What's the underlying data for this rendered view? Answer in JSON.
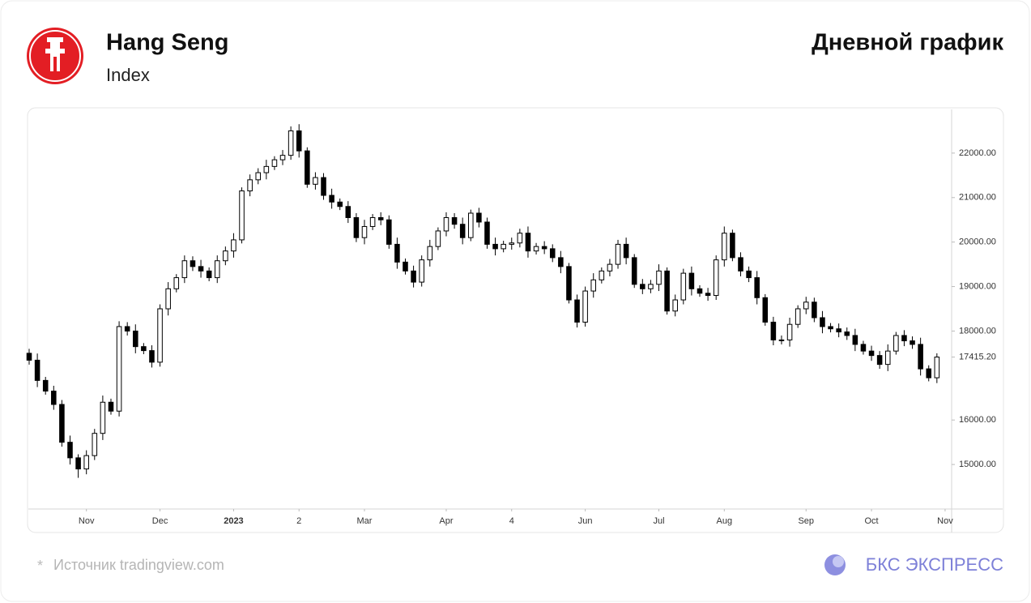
{
  "header": {
    "title": "Hang Seng",
    "subtitle": "Index",
    "chart_label": "Дневной график"
  },
  "chart_data": {
    "type": "candlestick",
    "open": [
      17500,
      17345,
      16890,
      16650,
      16350,
      15500,
      15150,
      14900,
      15200,
      15700,
      16400,
      16200,
      18100,
      18000,
      17650,
      17560,
      17300,
      18500,
      18950,
      19200,
      19580,
      19450,
      19350,
      19200,
      19580,
      19800,
      20050,
      21150,
      21400,
      21560,
      21700,
      21850,
      21950,
      22500,
      22050,
      21300,
      21450,
      21050,
      20900,
      20800,
      20550,
      20100,
      20350,
      20550,
      20500,
      19950,
      19550,
      19350,
      19100,
      19600,
      19900,
      20250,
      20550,
      20400,
      20100,
      20650,
      20450,
      19950,
      19850,
      19950,
      19980,
      20200,
      19800,
      19900,
      19850,
      19650,
      19450,
      18700,
      18200,
      18900,
      19150,
      19350,
      19500,
      19950,
      19650,
      19050,
      18950,
      19050,
      19350,
      18450,
      18700,
      19300,
      18950,
      18850,
      18800,
      19600,
      20200,
      19650,
      19350,
      19200,
      18750,
      18200,
      17800,
      17800,
      18150,
      18500,
      18650,
      18300,
      18100,
      18050,
      17980,
      17900,
      17700,
      17550,
      17450,
      17250,
      17550,
      17900,
      17780,
      17700,
      17150,
      16950
    ],
    "high": [
      17600,
      17495,
      16970,
      16770,
      16450,
      15650,
      15230,
      15320,
      15800,
      16550,
      16480,
      18220,
      18200,
      18150,
      17730,
      17680,
      18600,
      19100,
      19280,
      19700,
      19680,
      19600,
      19430,
      19700,
      19900,
      20200,
      21230,
      21520,
      21660,
      21850,
      21930,
      22070,
      22600,
      22650,
      22130,
      21570,
      21550,
      21200,
      20980,
      20920,
      20650,
      20500,
      20630,
      20670,
      20600,
      20100,
      19630,
      19470,
      19700,
      20050,
      20330,
      20670,
      20650,
      20550,
      20730,
      20770,
      20550,
      20100,
      20030,
      20100,
      20300,
      20350,
      19980,
      20020,
      19950,
      19800,
      19530,
      18820,
      19000,
      19300,
      19430,
      19620,
      20050,
      20100,
      19730,
      19170,
      19150,
      19500,
      19430,
      18820,
      19400,
      19450,
      19030,
      18970,
      19700,
      20350,
      20280,
      19770,
      19450,
      19350,
      18830,
      18320,
      17900,
      18300,
      18580,
      18770,
      18750,
      18450,
      18180,
      18170,
      18080,
      18050,
      17780,
      17670,
      17550,
      17700,
      17980,
      18020,
      17880,
      17850,
      17230,
      17500
    ],
    "low": [
      17245,
      16740,
      16570,
      16230,
      15400,
      15000,
      14700,
      14780,
      15100,
      15550,
      16120,
      16080,
      17900,
      17500,
      17480,
      17180,
      17200,
      18350,
      18870,
      19080,
      19350,
      19200,
      19120,
      19080,
      19480,
      19650,
      19970,
      21030,
      21300,
      21410,
      21620,
      21730,
      21850,
      21900,
      21220,
      21180,
      20950,
      20750,
      20720,
      20430,
      20000,
      19950,
      20270,
      20380,
      19850,
      19400,
      19270,
      18980,
      19000,
      19450,
      19820,
      20130,
      20300,
      19950,
      20020,
      20330,
      19850,
      19700,
      19770,
      19830,
      19880,
      19650,
      19720,
      19730,
      19550,
      19300,
      18620,
      18080,
      18100,
      18750,
      19070,
      19230,
      19400,
      19500,
      18970,
      18830,
      18850,
      18900,
      18370,
      18330,
      18600,
      18800,
      18770,
      18680,
      18700,
      19450,
      19570,
      19230,
      19100,
      18600,
      18120,
      17680,
      17700,
      17650,
      18070,
      18380,
      18200,
      17950,
      17970,
      17860,
      17800,
      17550,
      17470,
      17330,
      17150,
      17100,
      17470,
      17660,
      17600,
      17000,
      16870,
      16830
    ],
    "close": [
      17345,
      16890,
      16650,
      16350,
      15500,
      15150,
      14900,
      15200,
      15700,
      16400,
      16200,
      18100,
      18000,
      17650,
      17560,
      17300,
      18500,
      18950,
      19200,
      19580,
      19450,
      19350,
      19200,
      19580,
      19800,
      20050,
      21150,
      21400,
      21560,
      21700,
      21850,
      21950,
      22500,
      22050,
      21300,
      21450,
      21050,
      20900,
      20800,
      20550,
      20100,
      20350,
      20550,
      20500,
      19950,
      19550,
      19350,
      19100,
      19600,
      19900,
      20250,
      20550,
      20400,
      20100,
      20650,
      20450,
      19950,
      19850,
      19950,
      19980,
      20200,
      19800,
      19900,
      19850,
      19650,
      19450,
      18700,
      18200,
      18900,
      19150,
      19350,
      19500,
      19950,
      19650,
      19050,
      18950,
      19050,
      19350,
      18450,
      18700,
      19300,
      18950,
      18850,
      18800,
      19600,
      20200,
      19650,
      19350,
      19200,
      18750,
      18200,
      17800,
      17800,
      18150,
      18500,
      18650,
      18300,
      18100,
      18050,
      17980,
      17900,
      17700,
      17550,
      17450,
      17250,
      17550,
      17900,
      17780,
      17700,
      17150,
      16950,
      17415.2
    ],
    "up_color": "#ffffff",
    "down_color": "#000000",
    "outline_color": "#000000",
    "xlim": [
      -0.1,
      112.8
    ],
    "xticks": [
      {
        "value": 7,
        "label": "Nov"
      },
      {
        "value": 16,
        "label": "Dec"
      },
      {
        "value": 25,
        "label": "2023"
      },
      {
        "value": 33,
        "label": "2"
      },
      {
        "value": 41,
        "label": "Mar"
      },
      {
        "value": 51,
        "label": "Apr"
      },
      {
        "value": 59,
        "label": "4"
      },
      {
        "value": 68,
        "label": "Jun"
      },
      {
        "value": 77,
        "label": "Jul"
      },
      {
        "value": 85,
        "label": "Aug"
      },
      {
        "value": 95,
        "label": "Sep"
      },
      {
        "value": 103,
        "label": "Oct"
      },
      {
        "value": 112,
        "label": "Nov"
      }
    ],
    "ylim": [
      14000,
      22982
    ],
    "yticks": [
      {
        "value": 15000,
        "label": "15000.00"
      },
      {
        "value": 16000,
        "label": "16000.00"
      },
      {
        "value": 18000,
        "label": "18000.00"
      },
      {
        "value": 19000,
        "label": "19000.00"
      },
      {
        "value": 20000,
        "label": "20000.00"
      },
      {
        "value": 21000,
        "label": "21000.00"
      },
      {
        "value": 22000,
        "label": "22000.00"
      }
    ],
    "last_price": {
      "value": 17415.2,
      "label": "17415.20"
    },
    "grid": false
  },
  "footer": {
    "note_mark": "*",
    "source": "Источник tradingview.com",
    "brand": "БКС ЭКСПРЕСС"
  }
}
